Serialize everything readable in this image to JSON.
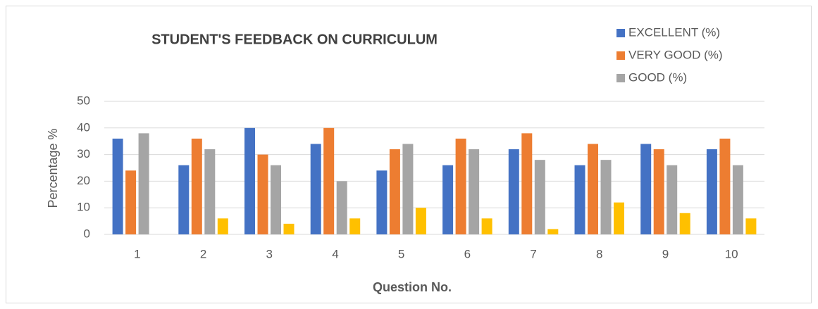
{
  "chart_data": {
    "type": "bar",
    "title": "STUDENT'S FEEDBACK ON CURRICULUM",
    "x_label": "Question No.",
    "y_label": "Percentage %",
    "categories": [
      "1",
      "2",
      "3",
      "4",
      "5",
      "6",
      "7",
      "8",
      "9",
      "10"
    ],
    "series": [
      {
        "name": "EXCELLENT (%)",
        "color": "#4472c4",
        "values": [
          36,
          26,
          40,
          34,
          24,
          26,
          32,
          26,
          34,
          32
        ]
      },
      {
        "name": "VERY GOOD (%)",
        "color": "#ed7d31",
        "values": [
          24,
          36,
          30,
          40,
          32,
          36,
          38,
          34,
          32,
          36
        ]
      },
      {
        "name": "GOOD (%)",
        "color": "#a5a5a5",
        "values": [
          38,
          32,
          26,
          20,
          34,
          32,
          28,
          28,
          26,
          26
        ]
      },
      {
        "name": null,
        "color": "#ffc000",
        "values": [
          0,
          6,
          4,
          6,
          10,
          6,
          2,
          12,
          8,
          6
        ]
      }
    ],
    "ylim": [
      0,
      50
    ],
    "yticks": [
      0,
      10,
      20,
      30,
      40,
      50
    ],
    "grid": true
  }
}
